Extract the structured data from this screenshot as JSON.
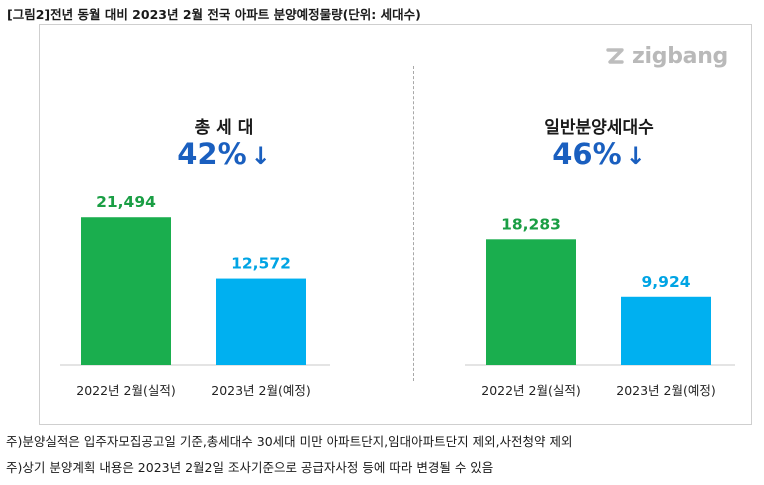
{
  "figure_title": "[그림2]전년 동월 대비 2023년 2월 전국 아파트 분양예정물량(단위: 세대수)",
  "logo_text": "zigbang",
  "colors": {
    "actual": "#1aae4e",
    "planned": "#00b0f0",
    "actual_label": "#1a9e44",
    "planned_label": "#00a4e4",
    "pct": "#1a5fbf"
  },
  "chart_data": [
    {
      "type": "bar",
      "title": "총 세 대",
      "change_label": "42%",
      "change_direction": "down",
      "categories": [
        "2022년 2월(실적)",
        "2023년 2월(예정)"
      ],
      "values": [
        21494,
        12572
      ],
      "value_labels": [
        "21,494",
        "12,572"
      ],
      "ylim": [
        0,
        24000
      ]
    },
    {
      "type": "bar",
      "title": "일반분양세대수",
      "change_label": "46%",
      "change_direction": "down",
      "categories": [
        "2022년 2월(실적)",
        "2023년 2월(예정)"
      ],
      "values": [
        18283,
        9924
      ],
      "value_labels": [
        "18,283",
        "9,924"
      ],
      "ylim": [
        0,
        24000
      ]
    }
  ],
  "footnotes": [
    "주)분양실적은 입주자모집공고일 기준,총세대수 30세대 미만 아파트단지,임대아파트단지 제외,사전청약 제외",
    "주)상기 분양계획 내용은 2023년 2월2일 조사기준으로 공급자사정 등에 따라 변경될 수 있음"
  ]
}
